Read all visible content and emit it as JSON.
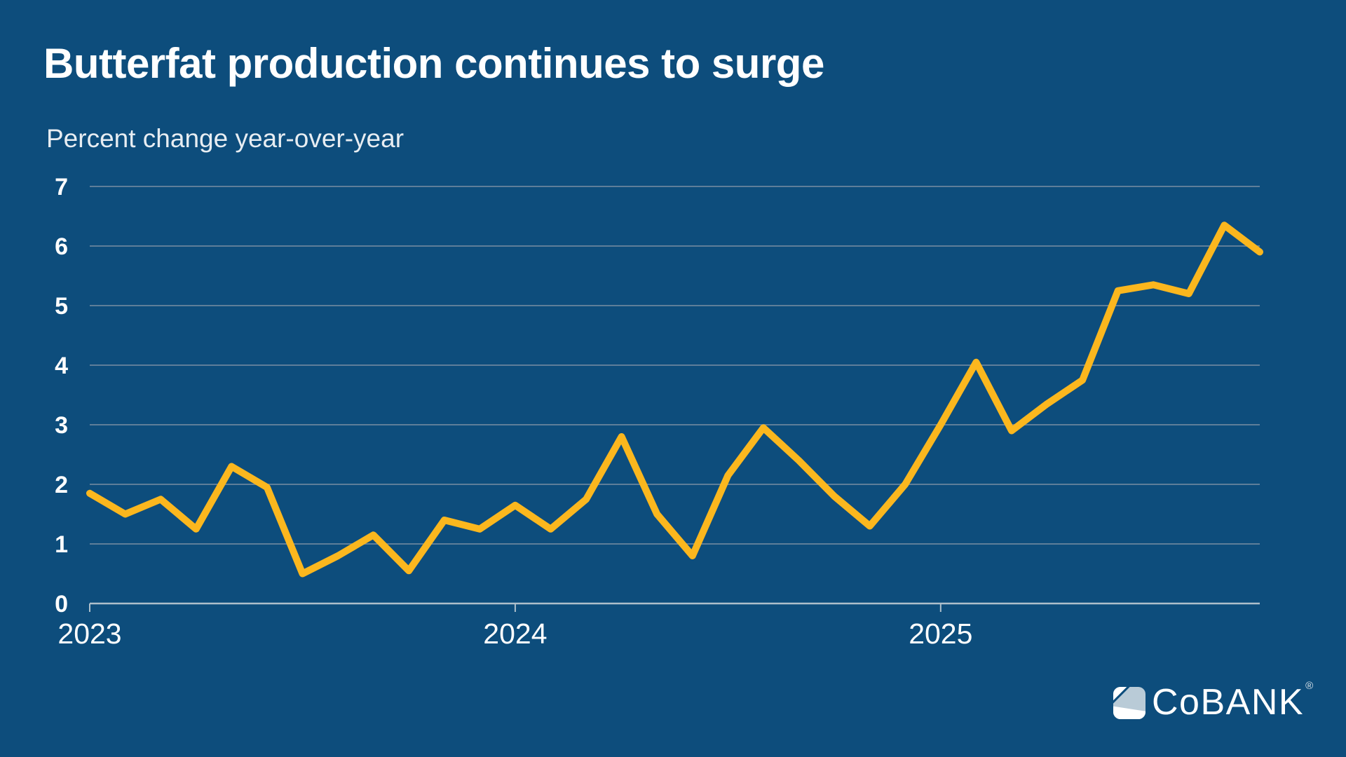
{
  "colors": {
    "background": "#0D4D7C",
    "line_gold": "#FBB71E",
    "gridline": "#5E7E99",
    "axis": "#AEBFCB",
    "text": "#FFFFFF",
    "subtitle_text": "#E7EDF2",
    "logo_light_blue": "#B9CBD7"
  },
  "chart_data": {
    "type": "line",
    "title": "Butterfat production continues to surge",
    "subtitle": "Percent change year-over-year",
    "xlabel": "",
    "ylabel": "Percent change year-over-year",
    "ylim": [
      0,
      7
    ],
    "y_ticks": [
      0,
      1,
      2,
      3,
      4,
      5,
      6,
      7
    ],
    "grid": "horizontal",
    "legend": "none",
    "frequency": "monthly",
    "months": [
      "Jan 2023",
      "Feb 2023",
      "Mar 2023",
      "Apr 2023",
      "May 2023",
      "Jun 2023",
      "Jul 2023",
      "Aug 2023",
      "Sep 2023",
      "Oct 2023",
      "Nov 2023",
      "Dec 2023",
      "Jan 2024",
      "Feb 2024",
      "Mar 2024",
      "Apr 2024",
      "May 2024",
      "Jun 2024",
      "Jul 2024",
      "Aug 2024",
      "Sep 2024",
      "Oct 2024",
      "Nov 2024",
      "Dec 2024",
      "Jan 2025",
      "Feb 2025",
      "Mar 2025",
      "Apr 2025",
      "May 2025",
      "Jun 2025",
      "Jul 2025",
      "Aug 2025",
      "Sep 2025",
      "Oct 2025"
    ],
    "x_tick_labels": [
      "2023",
      "2024",
      "2025"
    ],
    "x_tick_indices": [
      0,
      12,
      24
    ],
    "series": [
      {
        "name": "Butterfat production, percent change year-over-year",
        "color": "#FBB71E",
        "values": [
          1.85,
          1.5,
          1.75,
          1.25,
          2.3,
          1.95,
          0.5,
          0.8,
          1.15,
          0.55,
          1.4,
          1.25,
          1.65,
          1.25,
          1.75,
          2.8,
          1.5,
          0.8,
          2.15,
          2.95,
          2.4,
          1.8,
          1.3,
          2.0,
          3.0,
          4.05,
          2.9,
          3.35,
          3.75,
          5.25,
          5.35,
          5.2,
          6.35,
          5.9
        ]
      }
    ]
  },
  "logo": {
    "text": "CoBANK",
    "registered": "®"
  }
}
